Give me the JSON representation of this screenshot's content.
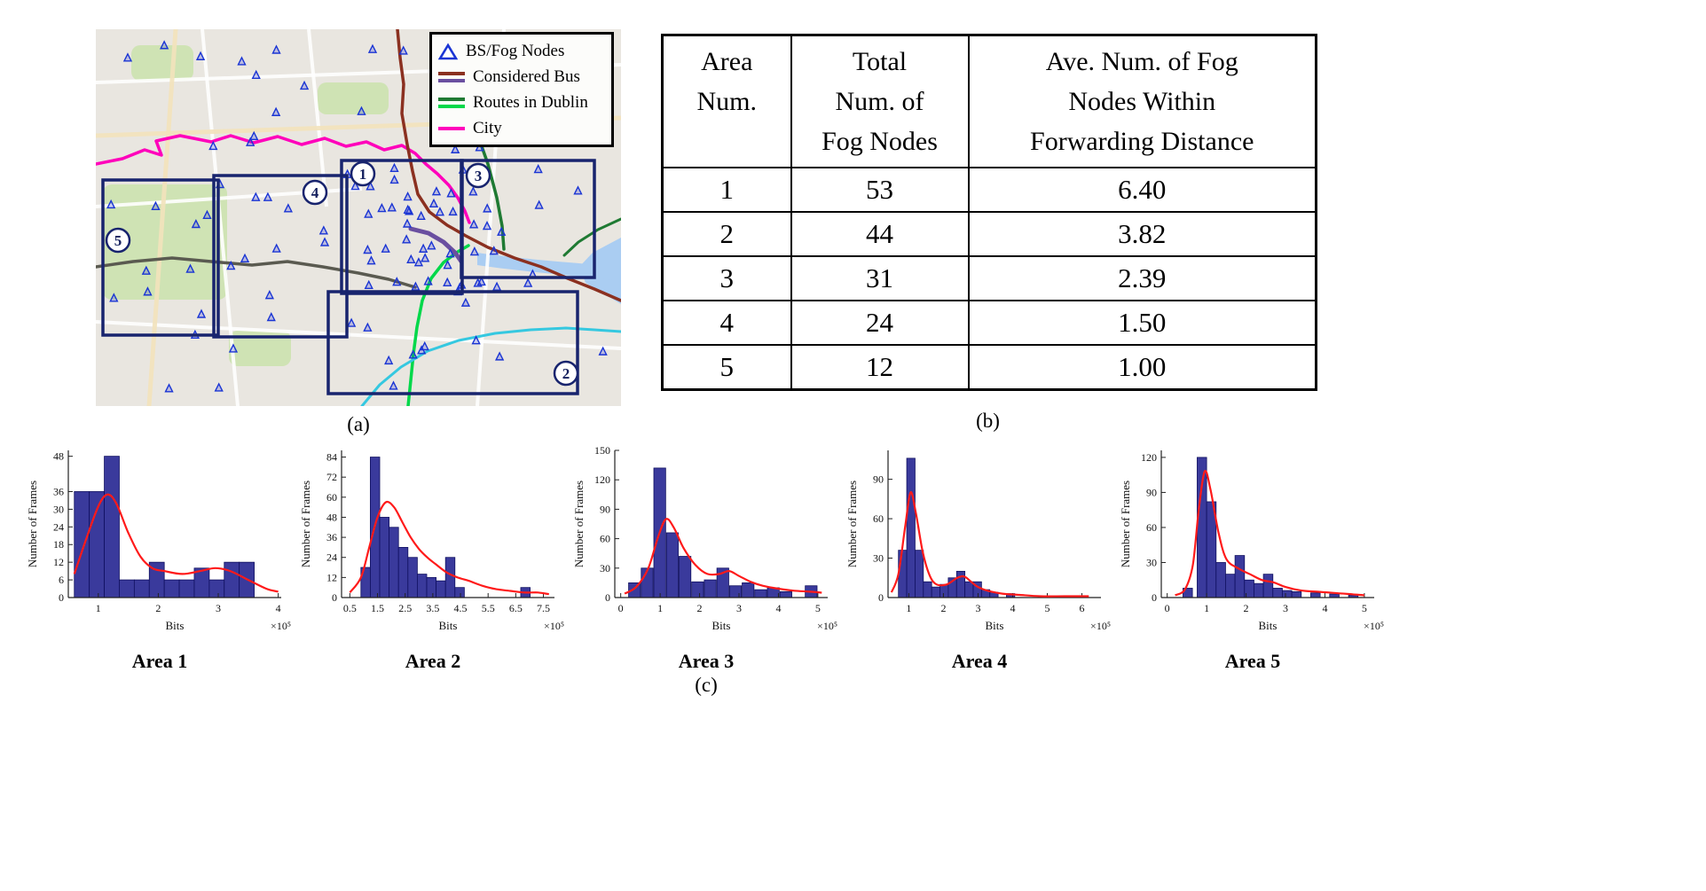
{
  "figure": {
    "panel_a_label": "(a)",
    "panel_b_label": "(b)",
    "panel_c_label": "(c)"
  },
  "map": {
    "legend": {
      "items": [
        {
          "label": "BS/Fog Nodes"
        },
        {
          "label": "Considered Bus"
        },
        {
          "label": "Routes in Dublin"
        },
        {
          "label": "City"
        }
      ]
    },
    "area_labels": [
      "1",
      "2",
      "3",
      "4",
      "5"
    ],
    "colors": {
      "node_blue": "#1a35d4",
      "area_box": "#18246e",
      "bus_maroon": "#8b3020",
      "bus_purple": "#6a4fa0",
      "bus_darkgreen": "#1f7a33",
      "bus_brightgreen": "#00d84a",
      "bus_magenta": "#ff00bb",
      "bus_cyan": "#35c8e0",
      "route_gray": "#5a5a50"
    }
  },
  "table": {
    "headers": [
      "Area\nNum.",
      "Total\nNum. of\nFog Nodes",
      "Ave. Num. of Fog\nNodes Within\nForwarding Distance"
    ],
    "rows": [
      [
        "1",
        "53",
        "6.40"
      ],
      [
        "2",
        "44",
        "3.82"
      ],
      [
        "3",
        "31",
        "2.39"
      ],
      [
        "4",
        "24",
        "1.50"
      ],
      [
        "5",
        "12",
        "1.00"
      ]
    ]
  },
  "chart_style": {
    "bar_fill": "#3a3a9c",
    "bar_edge": "#101060",
    "curve_color": "#ff1a1a",
    "axis_color": "#222222"
  },
  "chart_data": [
    {
      "type": "bar",
      "title": "Area 1",
      "xlabel": "Bits",
      "ylabel": "Number of Frames",
      "x_multiplier": "×10⁵",
      "xlim": [
        0.5,
        4.05
      ],
      "ylim": [
        0,
        50
      ],
      "xticks": [
        "1",
        "2",
        "3",
        "4"
      ],
      "yticks": [
        0,
        6,
        12,
        18,
        24,
        30,
        36,
        48
      ],
      "bar_width": 0.25,
      "bars": {
        "x": [
          0.725,
          0.975,
          1.225,
          1.475,
          1.725,
          1.975,
          2.225,
          2.475,
          2.725,
          2.975,
          3.225,
          3.475
        ],
        "heights": [
          36,
          36,
          48,
          6,
          6,
          12,
          6,
          6,
          10,
          6,
          12,
          12
        ]
      },
      "curve": {
        "x": [
          0.6,
          0.8,
          1.0,
          1.15,
          1.3,
          1.5,
          1.7,
          1.9,
          2.1,
          2.4,
          2.7,
          2.95,
          3.2,
          3.5,
          3.8,
          4.0
        ],
        "y": [
          8,
          20,
          31,
          35,
          32,
          22,
          14,
          10,
          9,
          8,
          9,
          10,
          9,
          6,
          3,
          2
        ]
      }
    },
    {
      "type": "bar",
      "title": "Area 2",
      "xlabel": "Bits",
      "ylabel": "Number of Frames",
      "x_multiplier": "×10⁵",
      "xlim": [
        0.2,
        7.9
      ],
      "ylim": [
        0,
        88
      ],
      "xticks": [
        "0.5",
        "1.5",
        "2.5",
        "3.5",
        "4.5",
        "5.5",
        "6.5",
        "7.5"
      ],
      "yticks": [
        0,
        12,
        24,
        36,
        48,
        60,
        72,
        84
      ],
      "bar_width": 0.34,
      "bars": {
        "x": [
          1.07,
          1.41,
          1.75,
          2.09,
          2.43,
          2.77,
          3.11,
          3.45,
          3.79,
          4.13,
          4.47,
          6.85
        ],
        "heights": [
          18,
          84,
          48,
          42,
          30,
          24,
          14,
          12,
          10,
          24,
          6,
          6
        ]
      },
      "curve": {
        "x": [
          0.5,
          0.9,
          1.2,
          1.5,
          1.8,
          2.1,
          2.4,
          2.7,
          3.0,
          3.3,
          3.6,
          4.0,
          4.4,
          4.8,
          5.3,
          5.8,
          6.3,
          6.8,
          7.3,
          7.7
        ],
        "y": [
          3,
          12,
          30,
          48,
          57,
          54,
          45,
          36,
          29,
          24,
          20,
          15,
          12,
          10,
          7,
          5,
          4,
          3,
          3,
          2
        ]
      }
    },
    {
      "type": "bar",
      "title": "Area 3",
      "xlabel": "Bits",
      "ylabel": "Number of Frames",
      "x_multiplier": "×10⁵",
      "xlim": [
        -0.15,
        5.25
      ],
      "ylim": [
        0,
        150
      ],
      "xticks": [
        "0",
        "1",
        "2",
        "3",
        "4",
        "5"
      ],
      "yticks": [
        0,
        30,
        60,
        90,
        120,
        150
      ],
      "bar_width": 0.3,
      "bars": {
        "x": [
          0.35,
          0.67,
          0.99,
          1.31,
          1.63,
          1.95,
          2.27,
          2.59,
          2.91,
          3.23,
          3.55,
          3.87,
          4.19,
          4.83
        ],
        "heights": [
          15,
          30,
          132,
          66,
          42,
          16,
          18,
          30,
          12,
          15,
          8,
          10,
          6,
          12
        ]
      },
      "curve": {
        "x": [
          0.1,
          0.4,
          0.7,
          0.95,
          1.15,
          1.35,
          1.6,
          1.9,
          2.2,
          2.5,
          2.75,
          3.0,
          3.3,
          3.6,
          4.0,
          4.4,
          4.8,
          5.1
        ],
        "y": [
          4,
          11,
          30,
          62,
          80,
          71,
          50,
          33,
          24,
          24,
          27,
          22,
          16,
          12,
          9,
          7,
          6,
          5
        ]
      }
    },
    {
      "type": "bar",
      "title": "Area 4",
      "xlabel": "Bits",
      "ylabel": "Number of Frames",
      "x_multiplier": "×10⁵",
      "xlim": [
        0.4,
        6.55
      ],
      "ylim": [
        0,
        112
      ],
      "xticks": [
        "1",
        "2",
        "3",
        "4",
        "5",
        "6"
      ],
      "yticks": [
        0,
        30,
        60,
        90
      ],
      "bar_width": 0.24,
      "bars": {
        "x": [
          0.82,
          1.06,
          1.3,
          1.54,
          1.78,
          2.02,
          2.26,
          2.5,
          2.74,
          2.98,
          3.22,
          3.46,
          3.94
        ],
        "heights": [
          36,
          106,
          36,
          12,
          8,
          10,
          15,
          20,
          12,
          12,
          6,
          4,
          3
        ]
      },
      "curve": {
        "x": [
          0.5,
          0.7,
          0.9,
          1.05,
          1.2,
          1.4,
          1.6,
          1.8,
          2.1,
          2.4,
          2.6,
          2.8,
          3.0,
          3.3,
          3.7,
          4.2,
          4.8,
          5.5,
          6.2
        ],
        "y": [
          4,
          18,
          55,
          80,
          65,
          35,
          17,
          10,
          10,
          15,
          16,
          12,
          8,
          5,
          3,
          2,
          1,
          1,
          1
        ]
      }
    },
    {
      "type": "bar",
      "title": "Area 5",
      "xlabel": "Bits",
      "ylabel": "Number of Frames",
      "x_multiplier": "×10⁵",
      "xlim": [
        -0.15,
        5.25
      ],
      "ylim": [
        0,
        126
      ],
      "xticks": [
        "0",
        "1",
        "2",
        "3",
        "4",
        "5"
      ],
      "yticks": [
        0,
        30,
        60,
        90,
        120
      ],
      "bar_width": 0.24,
      "bars": {
        "x": [
          0.52,
          0.88,
          1.12,
          1.36,
          1.6,
          1.84,
          2.08,
          2.32,
          2.56,
          2.8,
          3.04,
          3.28,
          3.76,
          4.24,
          4.72
        ],
        "heights": [
          8,
          120,
          82,
          30,
          20,
          36,
          15,
          12,
          20,
          8,
          6,
          5,
          4,
          3,
          2
        ]
      },
      "curve": {
        "x": [
          0.2,
          0.45,
          0.65,
          0.8,
          0.95,
          1.1,
          1.3,
          1.5,
          1.8,
          2.1,
          2.4,
          2.7,
          3.0,
          3.4,
          3.8,
          4.2,
          4.6,
          5.0
        ],
        "y": [
          2,
          7,
          28,
          75,
          108,
          92,
          56,
          33,
          25,
          20,
          15,
          13,
          9,
          6,
          5,
          4,
          3,
          2
        ]
      }
    }
  ]
}
